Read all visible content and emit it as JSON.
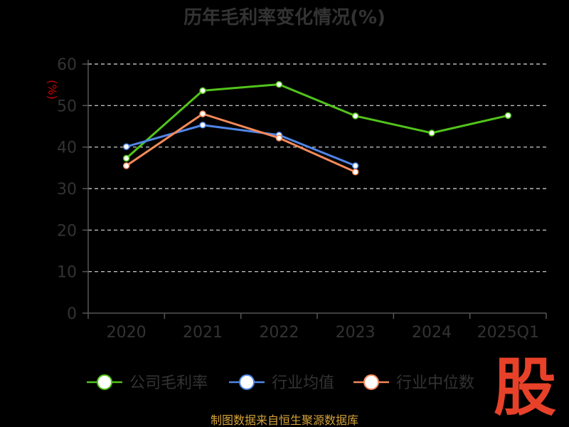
{
  "title": "历年毛利率变化情况(%)",
  "source": "制图数据来自恒生聚源数据库",
  "watermark": "股",
  "colors": {
    "background": "#000000",
    "text": "#333333",
    "axis": "#555555",
    "grid": "#dddddd",
    "ylabel": "#cc0000",
    "source": "#d4a23a",
    "watermark": "#e8412a"
  },
  "chart_data": {
    "type": "line",
    "categories": [
      "2020",
      "2021",
      "2022",
      "2023",
      "2024",
      "2025Q1"
    ],
    "ylabel": "(%)",
    "xlabel": "",
    "ylim": [
      0,
      60
    ],
    "yticks": [
      0,
      10,
      20,
      30,
      40,
      50,
      60
    ],
    "grid": true,
    "legend_position": "bottom",
    "series": [
      {
        "name": "公司毛利率",
        "color": "#52c41a",
        "values": [
          37.3,
          53.6,
          55.1,
          47.5,
          43.4,
          47.6
        ]
      },
      {
        "name": "行业均值",
        "color": "#4f86e8",
        "values": [
          40.1,
          45.3,
          42.9,
          35.5,
          null,
          null
        ]
      },
      {
        "name": "行业中位数",
        "color": "#f58a5a",
        "values": [
          35.5,
          48.0,
          42.2,
          34.0,
          null,
          null
        ]
      }
    ]
  }
}
